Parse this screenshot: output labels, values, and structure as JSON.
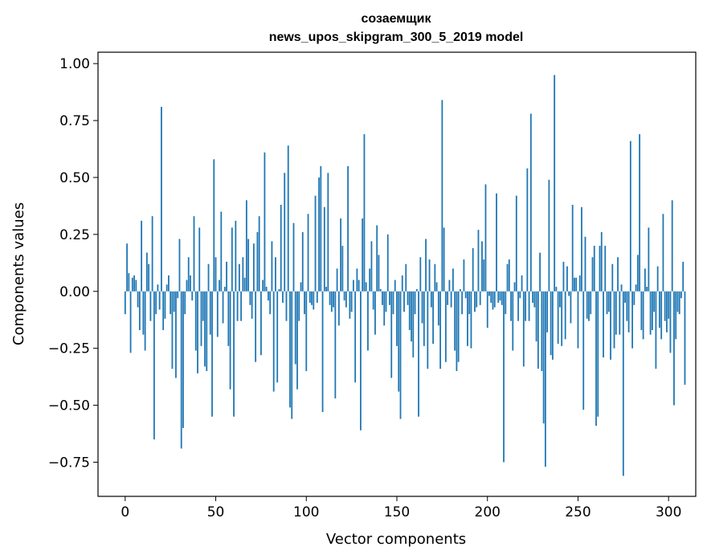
{
  "chart_data": {
    "type": "bar",
    "title_line1": "созаемщик",
    "title_line2": "news_upos_skipgram_300_5_2019 model",
    "xlabel": "Vector components",
    "ylabel": "Components values",
    "xlim": [
      -15,
      315
    ],
    "ylim": [
      -0.9,
      1.05
    ],
    "xticks": [
      0,
      50,
      100,
      150,
      200,
      250,
      300
    ],
    "xtick_labels": [
      "0",
      "50",
      "100",
      "150",
      "200",
      "250",
      "300"
    ],
    "yticks": [
      -0.75,
      -0.5,
      -0.25,
      0.0,
      0.25,
      0.5,
      0.75,
      1.0
    ],
    "ytick_labels": [
      "−0.75",
      "−0.50",
      "−0.25",
      "0.00",
      "0.25",
      "0.50",
      "0.75",
      "1.00"
    ],
    "bar_color": "#1f77b4",
    "grid": false,
    "values": [
      -0.1,
      0.21,
      0.08,
      -0.27,
      0.06,
      0.07,
      0.05,
      -0.07,
      -0.17,
      0.31,
      -0.19,
      -0.26,
      0.17,
      0.12,
      -0.13,
      0.33,
      -0.65,
      -0.1,
      0.03,
      -0.08,
      0.81,
      -0.17,
      -0.12,
      0.03,
      0.07,
      -0.1,
      -0.34,
      -0.09,
      -0.38,
      -0.03,
      0.23,
      -0.69,
      -0.6,
      -0.1,
      0.05,
      0.15,
      0.07,
      -0.04,
      0.33,
      -0.26,
      -0.36,
      0.28,
      -0.24,
      -0.13,
      -0.33,
      -0.35,
      0.12,
      -0.19,
      -0.55,
      0.58,
      0.15,
      -0.2,
      0.05,
      0.35,
      -0.14,
      0.02,
      0.13,
      -0.24,
      -0.43,
      0.28,
      -0.55,
      0.31,
      -0.13,
      0.12,
      -0.13,
      0.15,
      0.06,
      0.4,
      0.23,
      -0.06,
      -0.12,
      0.21,
      -0.31,
      0.26,
      0.33,
      -0.28,
      0.05,
      0.61,
      0.02,
      -0.04,
      -0.1,
      0.22,
      -0.44,
      0.15,
      -0.4,
      0.01,
      0.38,
      -0.05,
      0.52,
      -0.13,
      0.64,
      -0.51,
      -0.56,
      0.3,
      -0.32,
      -0.43,
      -0.13,
      0.04,
      0.26,
      -0.1,
      -0.35,
      0.34,
      -0.05,
      -0.06,
      -0.08,
      0.42,
      -0.05,
      0.5,
      0.55,
      -0.53,
      0.37,
      0.02,
      0.52,
      -0.06,
      -0.09,
      -0.07,
      -0.47,
      0.1,
      -0.15,
      0.32,
      0.2,
      -0.04,
      -0.07,
      0.55,
      -0.12,
      -0.09,
      0.05,
      -0.4,
      0.1,
      0.05,
      -0.61,
      0.32,
      0.69,
      0.04,
      -0.26,
      0.1,
      0.22,
      -0.08,
      -0.19,
      0.29,
      0.16,
      0.01,
      -0.06,
      -0.15,
      -0.09,
      0.25,
      -0.06,
      -0.38,
      -0.1,
      0.05,
      -0.24,
      -0.44,
      -0.56,
      0.07,
      -0.09,
      0.12,
      -0.06,
      -0.17,
      -0.22,
      -0.29,
      -0.1,
      0.01,
      -0.55,
      0.15,
      -0.14,
      -0.24,
      0.23,
      -0.34,
      0.14,
      -0.07,
      -0.23,
      0.12,
      0.04,
      -0.15,
      -0.34,
      0.84,
      0.28,
      -0.31,
      -0.06,
      0.05,
      -0.07,
      0.1,
      -0.26,
      -0.35,
      -0.31,
      0.01,
      -0.1,
      0.14,
      -0.03,
      -0.24,
      -0.1,
      -0.25,
      0.19,
      -0.09,
      -0.07,
      0.27,
      -0.06,
      0.22,
      0.14,
      0.47,
      -0.16,
      -0.02,
      -0.05,
      -0.08,
      -0.07,
      0.43,
      -0.05,
      -0.04,
      -0.06,
      -0.75,
      -0.1,
      0.12,
      0.14,
      -0.13,
      -0.26,
      0.04,
      0.42,
      -0.13,
      -0.03,
      0.07,
      -0.33,
      -0.13,
      0.54,
      -0.13,
      0.78,
      -0.05,
      -0.07,
      -0.22,
      -0.34,
      0.17,
      -0.35,
      -0.58,
      -0.77,
      -0.18,
      0.49,
      -0.28,
      -0.3,
      0.95,
      0.02,
      -0.23,
      -0.07,
      -0.24,
      0.13,
      -0.21,
      0.11,
      -0.02,
      -0.14,
      0.38,
      0.06,
      0.06,
      -0.25,
      0.07,
      0.37,
      -0.52,
      0.24,
      -0.12,
      -0.13,
      -0.1,
      0.15,
      0.2,
      -0.59,
      -0.55,
      0.2,
      0.26,
      -0.29,
      0.2,
      -0.1,
      -0.09,
      -0.3,
      0.12,
      -0.25,
      -0.19,
      0.15,
      -0.19,
      0.03,
      -0.81,
      -0.05,
      -0.13,
      -0.18,
      0.66,
      -0.25,
      -0.06,
      0.03,
      0.16,
      0.69,
      -0.17,
      -0.21,
      0.1,
      0.02,
      0.28,
      -0.19,
      -0.17,
      -0.09,
      -0.34,
      0.11,
      -0.16,
      -0.21,
      0.34,
      -0.13,
      -0.18,
      -0.12,
      -0.27,
      0.4,
      -0.5,
      -0.21,
      -0.09,
      -0.1,
      -0.03,
      0.13,
      -0.41
    ]
  }
}
